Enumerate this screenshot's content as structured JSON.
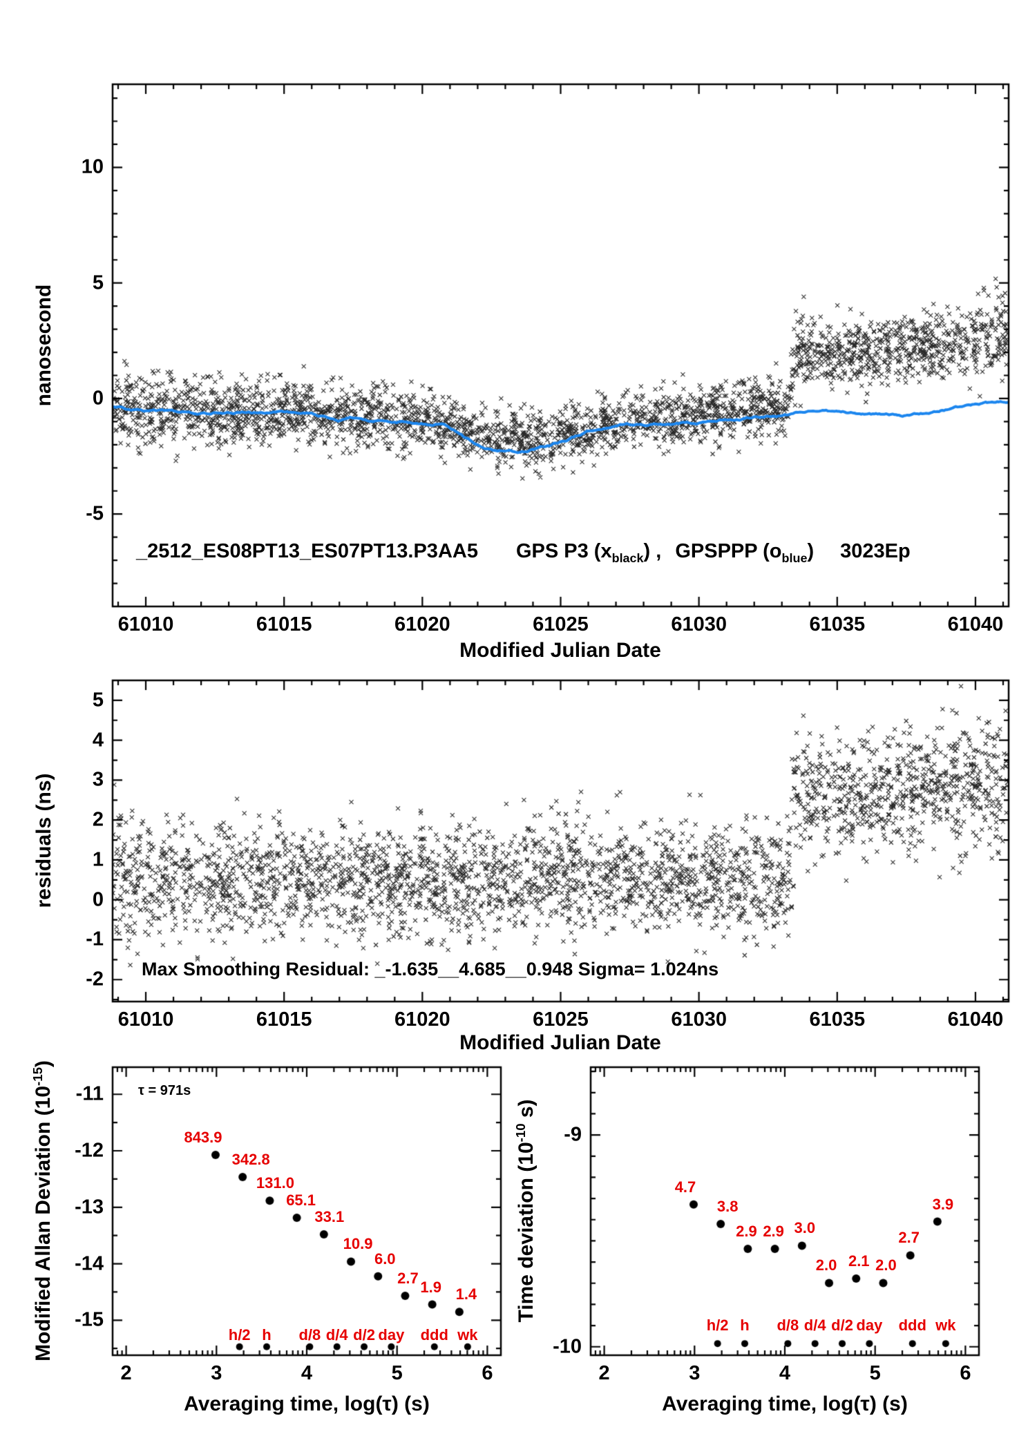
{
  "colors": {
    "black": "#000000",
    "blue": "#1c86ee",
    "red": "#e60000"
  },
  "chart_data": [
    {
      "id": "phase",
      "type": "scatter+line",
      "xlabel": "Modified Julian Date",
      "ylabel": "nanosecond",
      "legend": {
        "file": "_2512_ES08PT13_ES07PT13.P3AA5",
        "gps_pre": "GPS P3 (x",
        "gps_sub": "black",
        "gps_post": ") ,",
        "ppp_pre": "GPSPPP (o",
        "ppp_sub": "blue",
        "ppp_post": ")",
        "epochs": "3023Ep"
      },
      "xlim": [
        61008.8,
        61041.2
      ],
      "ylim": [
        -9.0,
        13.6
      ],
      "xticks": [
        61010,
        61015,
        61020,
        61025,
        61030,
        61035,
        61040
      ],
      "yticks": [
        -5,
        0,
        5,
        10
      ],
      "x_minor_step": 1,
      "y_minor_step": 1,
      "series": [
        {
          "name": "GPS P3",
          "marker": "x",
          "color": "#000000",
          "n": 3000,
          "seed": 20231,
          "trend": [
            [
              61008.8,
              -0.45,
              0.75
            ],
            [
              61011,
              -0.55,
              0.72
            ],
            [
              61013,
              -0.62,
              0.7
            ],
            [
              61015,
              -0.55,
              0.7
            ],
            [
              61017,
              -0.7,
              0.65
            ],
            [
              61019,
              -0.85,
              0.65
            ],
            [
              61020.5,
              -1.05,
              0.62
            ],
            [
              61021.5,
              -1.45,
              0.6
            ],
            [
              61022.5,
              -1.8,
              0.6
            ],
            [
              61023.5,
              -1.85,
              0.62
            ],
            [
              61024.5,
              -1.7,
              0.65
            ],
            [
              61025.5,
              -1.45,
              0.65
            ],
            [
              61026.5,
              -1.2,
              0.62
            ],
            [
              61027.5,
              -1.0,
              0.6
            ],
            [
              61028.5,
              -0.85,
              0.6
            ],
            [
              61029.5,
              -0.75,
              0.6
            ],
            [
              61030.5,
              -0.6,
              0.6
            ],
            [
              61031.5,
              -0.5,
              0.6
            ],
            [
              61032.5,
              -0.4,
              0.62
            ],
            [
              61033.25,
              -0.3,
              0.65
            ],
            [
              61033.5,
              2.05,
              0.9
            ],
            [
              61034.5,
              1.9,
              0.72
            ],
            [
              61035.5,
              1.9,
              0.7
            ],
            [
              61036.5,
              2.05,
              0.72
            ],
            [
              61037.5,
              2.2,
              0.75
            ],
            [
              61038.5,
              2.3,
              0.78
            ],
            [
              61039.5,
              2.5,
              0.8
            ],
            [
              61040.5,
              2.65,
              0.85
            ],
            [
              61041.2,
              2.9,
              1.0
            ]
          ]
        },
        {
          "name": "GPSPPP",
          "marker": "line",
          "color": "#1c86ee",
          "width": 4,
          "seed": 424,
          "points": [
            [
              61008.8,
              -0.35
            ],
            [
              61010,
              -0.55
            ],
            [
              61011,
              -0.6
            ],
            [
              61012,
              -0.65
            ],
            [
              61013,
              -0.62
            ],
            [
              61014,
              -0.6
            ],
            [
              61015,
              -0.55
            ],
            [
              61016,
              -0.62
            ],
            [
              61016.6,
              -0.8
            ],
            [
              61017,
              -0.92
            ],
            [
              61017.4,
              -0.78
            ],
            [
              61018,
              -0.95
            ],
            [
              61019,
              -1.0
            ],
            [
              61020,
              -1.05
            ],
            [
              61020.7,
              -1.12
            ],
            [
              61021.3,
              -1.5
            ],
            [
              61022,
              -2.05
            ],
            [
              61022.6,
              -2.28
            ],
            [
              61023.4,
              -2.35
            ],
            [
              61024,
              -2.22
            ],
            [
              61024.6,
              -2.02
            ],
            [
              61025.2,
              -1.78
            ],
            [
              61026,
              -1.45
            ],
            [
              61026.6,
              -1.3
            ],
            [
              61027.3,
              -1.15
            ],
            [
              61028,
              -1.12
            ],
            [
              61029,
              -1.08
            ],
            [
              61030,
              -1.02
            ],
            [
              61031,
              -0.92
            ],
            [
              61032,
              -0.82
            ],
            [
              61033,
              -0.75
            ],
            [
              61033.6,
              -0.62
            ],
            [
              61034.4,
              -0.56
            ],
            [
              61035.2,
              -0.6
            ],
            [
              61036,
              -0.66
            ],
            [
              61037,
              -0.72
            ],
            [
              61037.6,
              -0.74
            ],
            [
              61038.2,
              -0.62
            ],
            [
              61039,
              -0.45
            ],
            [
              61039.8,
              -0.3
            ],
            [
              61040.6,
              -0.18
            ],
            [
              61041.2,
              -0.1
            ]
          ]
        }
      ]
    },
    {
      "id": "residuals",
      "type": "scatter",
      "xlabel": "Modified Julian Date",
      "ylabel": "residuals (ns)",
      "annotation": "Max Smoothing Residual: _-1.635__4.685__0.948  Sigma= 1.024ns",
      "xlim": [
        61008.8,
        61041.2
      ],
      "ylim": [
        -2.55,
        5.5
      ],
      "xticks": [
        61010,
        61015,
        61020,
        61025,
        61030,
        61035,
        61040
      ],
      "yticks": [
        -2,
        -1,
        0,
        1,
        2,
        3,
        4,
        5
      ],
      "x_minor_step": 1,
      "y_minor_step": 0.5,
      "series": [
        {
          "name": "residuals",
          "marker": "x",
          "color": "#000000",
          "n": 3000,
          "seed": 5150,
          "trend": [
            [
              61008.8,
              0.55,
              0.78
            ],
            [
              61011,
              0.5,
              0.74
            ],
            [
              61013,
              0.5,
              0.72
            ],
            [
              61015,
              0.5,
              0.7
            ],
            [
              61017,
              0.45,
              0.7
            ],
            [
              61019,
              0.42,
              0.7
            ],
            [
              61021,
              0.45,
              0.72
            ],
            [
              61023,
              0.5,
              0.72
            ],
            [
              61025,
              0.55,
              0.72
            ],
            [
              61027,
              0.6,
              0.7
            ],
            [
              61029,
              0.55,
              0.7
            ],
            [
              61031,
              0.5,
              0.7
            ],
            [
              61033.25,
              0.55,
              0.72
            ],
            [
              61033.5,
              2.6,
              0.9
            ],
            [
              61034.5,
              2.55,
              0.72
            ],
            [
              61035.5,
              2.6,
              0.7
            ],
            [
              61036.5,
              2.7,
              0.72
            ],
            [
              61037.5,
              2.85,
              0.75
            ],
            [
              61038.5,
              2.9,
              0.78
            ],
            [
              61039.5,
              3.0,
              0.8
            ],
            [
              61040.5,
              3.0,
              0.85
            ],
            [
              61041.2,
              2.75,
              1.05
            ]
          ]
        }
      ]
    },
    {
      "id": "mdev",
      "type": "scatter",
      "ylabel_pre": "Modified Allan Deviation (10",
      "ylabel_sup": "-15",
      "ylabel_post": ")",
      "xlabel": "Averaging time, log(τ) (s)",
      "tau_note": "τ = 971s",
      "exponent": -15,
      "xlim": [
        1.85,
        6.15
      ],
      "ylim": [
        -15.62,
        -10.52
      ],
      "xticks": [
        2,
        3,
        4,
        5,
        6
      ],
      "yticks": [
        -11,
        -12,
        -13,
        -14,
        -15
      ],
      "log_x_minors": true,
      "y_minor_step": 0.5,
      "points": [
        {
          "log_tau": 2.99,
          "value": 843.9,
          "label": "843.9",
          "dx": -18
        },
        {
          "log_tau": 3.29,
          "value": 342.8,
          "label": "342.8",
          "dx": 12
        },
        {
          "log_tau": 3.59,
          "value": 131.0,
          "label": "131.0",
          "dx": 8
        },
        {
          "log_tau": 3.89,
          "value": 65.1,
          "label": "65.1",
          "dx": 6
        },
        {
          "log_tau": 4.19,
          "value": 33.1,
          "label": "33.1",
          "dx": 8
        },
        {
          "log_tau": 4.49,
          "value": 10.9,
          "label": "10.9",
          "dx": 10
        },
        {
          "log_tau": 4.79,
          "value": 6.0,
          "label": "6.0",
          "dx": 10
        },
        {
          "log_tau": 5.09,
          "value": 2.7,
          "label": "2.7",
          "dx": 4
        },
        {
          "log_tau": 5.39,
          "value": 1.9,
          "label": "1.9",
          "dx": -2
        },
        {
          "log_tau": 5.69,
          "value": 1.4,
          "label": "1.4",
          "dx": 10
        }
      ],
      "tau_markers": [
        {
          "label": "h/2",
          "log_tau": 3.2553
        },
        {
          "label": "h",
          "log_tau": 3.5563
        },
        {
          "label": "d/8",
          "log_tau": 4.0334
        },
        {
          "label": "d/4",
          "log_tau": 4.3345
        },
        {
          "label": "d/2",
          "log_tau": 4.6355
        },
        {
          "label": "day",
          "log_tau": 4.9365
        },
        {
          "label": "ddd",
          "log_tau": 5.4137
        },
        {
          "label": "wk",
          "log_tau": 5.7817
        }
      ],
      "marker_label_y": -15.27,
      "marker_dot_y": -15.47
    },
    {
      "id": "tdev",
      "type": "scatter",
      "ylabel_pre": "Time deviation (10",
      "ylabel_sup": "-10",
      "ylabel_post": " s)",
      "xlabel": "Averaging time, log(τ) (s)",
      "exponent": -10,
      "xlim": [
        1.85,
        6.15
      ],
      "ylim": [
        -10.04,
        -8.68
      ],
      "xticks": [
        2,
        3,
        4,
        5,
        6
      ],
      "yticks": [
        -9,
        -10
      ],
      "log_x_minors": true,
      "y_minor_step": 0.1,
      "points": [
        {
          "log_tau": 2.99,
          "value": 4.7,
          "label": "4.7",
          "dx": -12
        },
        {
          "log_tau": 3.29,
          "value": 3.8,
          "label": "3.8",
          "dx": 10
        },
        {
          "log_tau": 3.59,
          "value": 2.9,
          "label": "2.9",
          "dx": -2
        },
        {
          "log_tau": 3.89,
          "value": 2.9,
          "label": "2.9",
          "dx": -2
        },
        {
          "log_tau": 4.19,
          "value": 3.0,
          "label": "3.0",
          "dx": 4
        },
        {
          "log_tau": 4.49,
          "value": 2.0,
          "label": "2.0",
          "dx": -4
        },
        {
          "log_tau": 4.79,
          "value": 2.1,
          "label": "2.1",
          "dx": 4
        },
        {
          "log_tau": 5.09,
          "value": 2.0,
          "label": "2.0",
          "dx": 4
        },
        {
          "log_tau": 5.39,
          "value": 2.7,
          "label": "2.7",
          "dx": -2
        },
        {
          "log_tau": 5.69,
          "value": 3.9,
          "label": "3.9",
          "dx": 8
        }
      ],
      "tau_markers": [
        {
          "label": "h/2",
          "log_tau": 3.2553
        },
        {
          "label": "h",
          "log_tau": 3.5563
        },
        {
          "label": "d/8",
          "log_tau": 4.0334
        },
        {
          "label": "d/4",
          "log_tau": 4.3345
        },
        {
          "label": "d/2",
          "log_tau": 4.6355
        },
        {
          "label": "day",
          "log_tau": 4.9365
        },
        {
          "label": "ddd",
          "log_tau": 5.4137
        },
        {
          "label": "wk",
          "log_tau": 5.7817
        }
      ],
      "marker_label_y": -9.9,
      "marker_dot_y": -9.985
    }
  ]
}
